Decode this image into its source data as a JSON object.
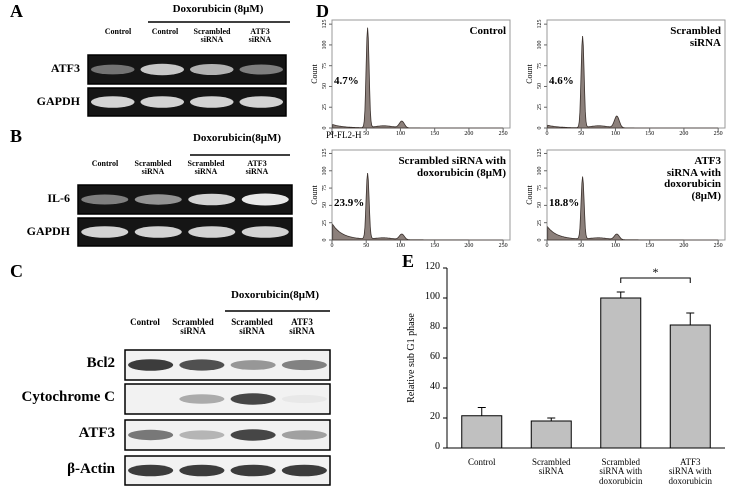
{
  "panels": {
    "A": {
      "label": "A",
      "treatment": "Doxorubicin (8μM)",
      "lanes": [
        "Control",
        "Control",
        "Scrambled\nsiRNA",
        "ATF3\nsiRNA"
      ],
      "rows": [
        "ATF3",
        "GAPDH"
      ]
    },
    "B": {
      "label": "B",
      "treatment": "Doxorubicin(8μM)",
      "lanes": [
        "Control",
        "Scrambled\nsiRNA",
        "Scrambled\nsiRNA",
        "ATF3\nsiRNA"
      ],
      "rows": [
        "IL-6",
        "GAPDH"
      ]
    },
    "C": {
      "label": "C",
      "treatment": "Doxorubicin(8μM)",
      "lanes": [
        "Control",
        "Scrambled\nsiRNA",
        "Scrambled\nsiRNA",
        "ATF3\nsiRNA"
      ],
      "rows": [
        "Bcl2",
        "Cytochrome C",
        "ATF3",
        "β-Actin"
      ]
    },
    "D": {
      "label": "D",
      "x_label": "PI-FL2-H",
      "y_label": "Count",
      "xlim": [
        0,
        260
      ],
      "ylim": [
        0,
        130
      ],
      "xticks": [
        0,
        50,
        100,
        150,
        200,
        250
      ],
      "yticks": [
        0,
        25,
        50,
        75,
        100,
        125
      ],
      "plots": [
        {
          "title": "Control",
          "percent": "4.7%"
        },
        {
          "title": "Scrambled siRNA",
          "percent": "4.6%"
        },
        {
          "title": "Scrambled siRNA with\ndoxorubicin (8μM)",
          "percent": "23.9%"
        },
        {
          "title": "ATF3 siRNA with\ndoxorubicin (8μM)",
          "percent": "18.8%"
        }
      ]
    }
  },
  "chart_data": {
    "type": "bar",
    "label": "E",
    "ylabel": "Relative sub G1 phase",
    "categories": [
      "Control",
      "Scrambled\nsiRNA",
      "Scrambled\nsiRNA with\ndoxorubicin",
      "ATF3\nsiRNA with\ndoxorubicin"
    ],
    "values": [
      21.5,
      18,
      100,
      82
    ],
    "errors": [
      5.5,
      2,
      4,
      8
    ],
    "color": "#c0c0c0",
    "ylim": [
      0,
      120
    ],
    "yticks": [
      0,
      20,
      40,
      60,
      80,
      100,
      120
    ],
    "annotation": "*"
  }
}
